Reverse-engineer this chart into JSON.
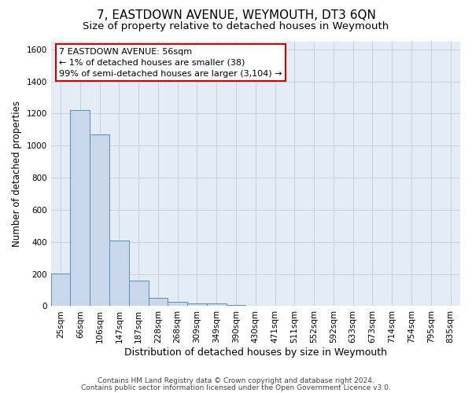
{
  "title": "7, EASTDOWN AVENUE, WEYMOUTH, DT3 6QN",
  "subtitle": "Size of property relative to detached houses in Weymouth",
  "xlabel": "Distribution of detached houses by size in Weymouth",
  "ylabel": "Number of detached properties",
  "footer1": "Contains HM Land Registry data © Crown copyright and database right 2024.",
  "footer2": "Contains public sector information licensed under the Open Government Licence v3.0.",
  "bin_labels": [
    "25sqm",
    "66sqm",
    "106sqm",
    "147sqm",
    "187sqm",
    "228sqm",
    "268sqm",
    "309sqm",
    "349sqm",
    "390sqm",
    "430sqm",
    "471sqm",
    "511sqm",
    "552sqm",
    "592sqm",
    "633sqm",
    "673sqm",
    "714sqm",
    "754sqm",
    "795sqm",
    "835sqm"
  ],
  "bar_values": [
    203,
    1222,
    1068,
    410,
    160,
    52,
    28,
    15,
    15,
    8,
    0,
    0,
    0,
    0,
    0,
    0,
    0,
    0,
    0,
    0,
    0
  ],
  "bar_face_color": "#c8d8ea",
  "bar_edge_color": "#5b8db8",
  "grid_color": "#c8d0de",
  "bg_color": "#e4ecf5",
  "ylim": [
    0,
    1650
  ],
  "yticks": [
    0,
    200,
    400,
    600,
    800,
    1000,
    1200,
    1400,
    1600
  ],
  "annotation_text": "7 EASTDOWN AVENUE: 56sqm\n← 1% of detached houses are smaller (38)\n99% of semi-detached houses are larger (3,104) →",
  "annotation_box_color": "#cc0000",
  "title_fontsize": 11,
  "subtitle_fontsize": 9.5,
  "ylabel_fontsize": 8.5,
  "xlabel_fontsize": 9,
  "tick_fontsize": 7.5,
  "annotation_fontsize": 8,
  "footer_fontsize": 6.5
}
